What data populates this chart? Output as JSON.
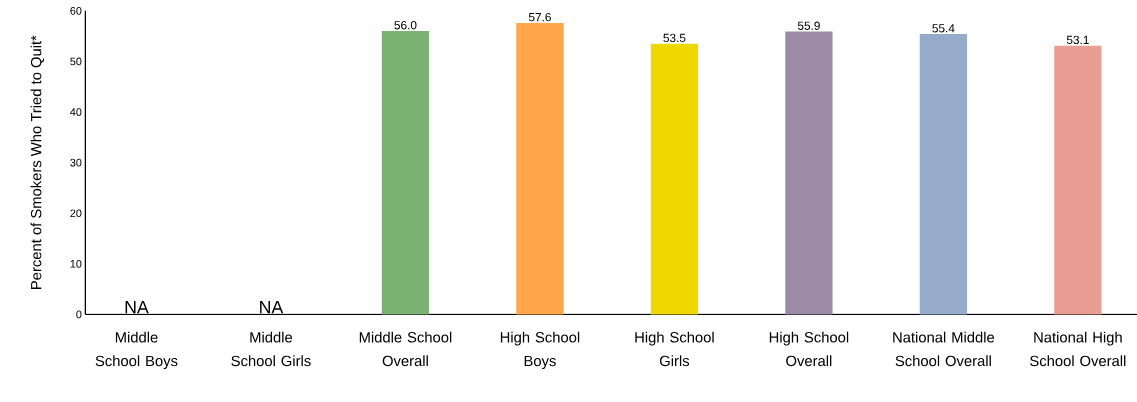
{
  "chart_data": {
    "type": "bar",
    "ylabel": "Percent of Smokers Who Tried to Quit*",
    "categories": [
      "Middle School Boys",
      "Middle School Girls",
      "Middle School Overall",
      "High School Boys",
      "High School Girls",
      "High School Overall",
      "National Middle School Overall",
      "National High School Overall"
    ],
    "values": [
      null,
      null,
      56.0,
      57.6,
      53.5,
      55.9,
      55.4,
      53.1
    ],
    "value_labels": [
      "NA",
      "NA",
      "56.0",
      "57.6",
      "53.5",
      "55.9",
      "55.4",
      "53.1"
    ],
    "colors": [
      null,
      null,
      "#7bb173",
      "#ffa64a",
      "#eed800",
      "#9d8ba6",
      "#95abc9",
      "#e89e92"
    ],
    "ylim": [
      0,
      60
    ],
    "yticks": [
      0,
      10,
      20,
      30,
      40,
      50,
      60
    ],
    "grid": false
  }
}
